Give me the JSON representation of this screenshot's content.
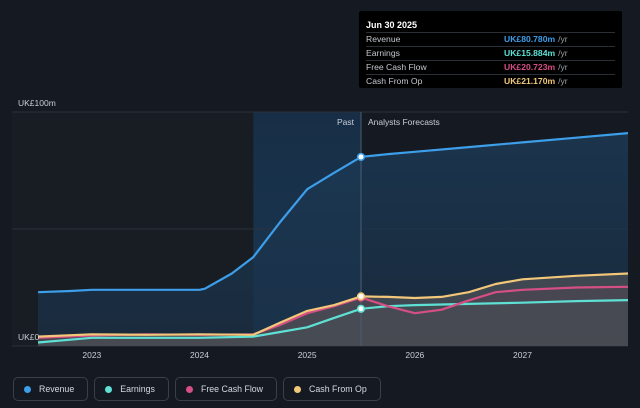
{
  "chart_data": {
    "type": "area",
    "x_tick_labels": [
      "2023",
      "2024",
      "2025",
      "2026",
      "2027"
    ],
    "y_tick_labels": [
      "UK£100m",
      "UK£0"
    ],
    "ylim": [
      0,
      100
    ],
    "xlim": [
      2022.45,
      2027.98
    ],
    "divider_x": 2025.5,
    "highlight_start_x": 2024.5,
    "past_label": "Past",
    "forecast_label": "Analysts Forecasts",
    "grid": "horizontal",
    "legend_position": "bottom-left",
    "series": [
      {
        "name": "Revenue",
        "color": "#3d9ee9",
        "x": [
          2022.5,
          2022.8,
          2023.0,
          2023.5,
          2024.0,
          2024.05,
          2024.3,
          2024.5,
          2024.75,
          2025.0,
          2025.25,
          2025.5,
          2025.75,
          2026.0,
          2026.5,
          2027.0,
          2027.5,
          2027.98
        ],
        "y": [
          23,
          23.5,
          24,
          24,
          24,
          24.5,
          31,
          38,
          53,
          67,
          74,
          80.8,
          82,
          83,
          85,
          87,
          89,
          91
        ]
      },
      {
        "name": "Earnings",
        "color": "#5ee0d4",
        "x": [
          2022.5,
          2023.0,
          2023.5,
          2024.0,
          2024.5,
          2024.75,
          2025.0,
          2025.25,
          2025.5,
          2025.75,
          2026.0,
          2026.5,
          2027.0,
          2027.5,
          2027.98
        ],
        "y": [
          1.5,
          3.5,
          3.5,
          3.5,
          4,
          6,
          8,
          12,
          15.9,
          17,
          17.5,
          18,
          18.5,
          19.2,
          19.6
        ]
      },
      {
        "name": "Free Cash Flow",
        "color": "#d64f84",
        "x": [
          2022.5,
          2023.0,
          2023.5,
          2024.0,
          2024.5,
          2024.75,
          2025.0,
          2025.25,
          2025.5,
          2025.75,
          2026.0,
          2026.25,
          2026.5,
          2026.75,
          2027.0,
          2027.5,
          2027.98
        ],
        "y": [
          3.5,
          4.5,
          5,
          4.8,
          5,
          9,
          14,
          17,
          20.7,
          17,
          14,
          15.5,
          19.5,
          23,
          24,
          25,
          25.3
        ]
      },
      {
        "name": "Cash From Op",
        "color": "#f2c77a",
        "x": [
          2022.5,
          2023.0,
          2023.5,
          2024.0,
          2024.5,
          2024.75,
          2025.0,
          2025.25,
          2025.5,
          2025.75,
          2026.0,
          2026.25,
          2026.5,
          2026.75,
          2027.0,
          2027.5,
          2027.98
        ],
        "y": [
          4,
          5,
          4.8,
          5,
          4.8,
          10,
          15,
          17.5,
          21.2,
          21,
          20.5,
          21,
          23,
          26.5,
          28.5,
          30,
          31
        ]
      }
    ],
    "highlight_points": [
      {
        "series": "Revenue",
        "x": 2025.5,
        "y": 80.8
      },
      {
        "series": "Earnings",
        "x": 2025.5,
        "y": 15.9
      },
      {
        "series": "Free Cash Flow",
        "x": 2025.5,
        "y": 20.7
      },
      {
        "series": "Cash From Op",
        "x": 2025.5,
        "y": 21.2
      }
    ]
  },
  "tooltip": {
    "date": "Jun 30 2025",
    "rows": [
      {
        "label": "Revenue",
        "value": "UK£80.780m",
        "unit": "/yr",
        "color": "#3d9ee9"
      },
      {
        "label": "Earnings",
        "value": "UK£15.884m",
        "unit": "/yr",
        "color": "#5ee0d4"
      },
      {
        "label": "Free Cash Flow",
        "value": "UK£20.723m",
        "unit": "/yr",
        "color": "#d64f84"
      },
      {
        "label": "Cash From Op",
        "value": "UK£21.170m",
        "unit": "/yr",
        "color": "#f2c77a"
      }
    ]
  },
  "legend": [
    {
      "label": "Revenue",
      "color": "#3d9ee9"
    },
    {
      "label": "Earnings",
      "color": "#5ee0d4"
    },
    {
      "label": "Free Cash Flow",
      "color": "#d64f84"
    },
    {
      "label": "Cash From Op",
      "color": "#f2c77a"
    }
  ]
}
